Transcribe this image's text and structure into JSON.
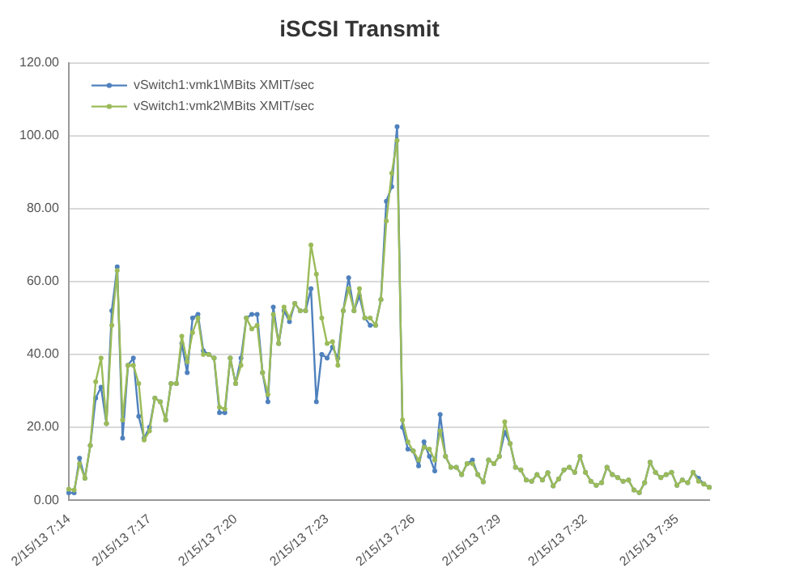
{
  "chart_data": {
    "type": "line",
    "title": "iSCSI Transmit",
    "categories": [
      "2/15/13 7:14",
      null,
      null,
      null,
      null,
      null,
      null,
      null,
      null,
      null,
      null,
      null,
      null,
      null,
      null,
      "2/15/13 7:17",
      null,
      null,
      null,
      null,
      null,
      null,
      null,
      null,
      null,
      null,
      null,
      null,
      null,
      null,
      null,
      "2/15/13 7:20",
      null,
      null,
      null,
      null,
      null,
      null,
      null,
      null,
      null,
      null,
      null,
      null,
      null,
      null,
      null,
      null,
      "2/15/13 7:23",
      null,
      null,
      null,
      null,
      null,
      null,
      null,
      null,
      null,
      null,
      null,
      null,
      null,
      null,
      null,
      "2/15/13 7:26",
      null,
      null,
      null,
      null,
      null,
      null,
      null,
      null,
      null,
      null,
      null,
      null,
      null,
      null,
      null,
      "2/15/13 7:29",
      null,
      null,
      null,
      null,
      null,
      null,
      null,
      null,
      null,
      null,
      null,
      null,
      null,
      null,
      null,
      "2/15/13 7:32",
      null,
      null,
      null,
      null,
      null,
      null,
      null,
      null,
      null,
      null,
      null,
      null,
      null,
      null,
      null,
      null,
      "2/15/13 7:35",
      null,
      null,
      null,
      null,
      null,
      null
    ],
    "series": [
      {
        "name": "vSwitch1:vmk1\\MBits XMIT/sec",
        "color": "#4f81bd",
        "values": [
          2,
          2,
          11.5,
          6,
          15,
          28,
          31,
          21,
          52,
          64,
          17,
          37,
          39,
          23,
          17,
          20,
          28,
          27,
          22,
          32,
          32,
          43,
          35,
          50,
          51,
          41,
          40,
          39,
          24,
          24,
          39,
          32,
          39,
          50,
          51,
          51,
          35,
          27,
          53,
          43,
          52,
          49,
          54,
          52,
          52,
          58,
          27,
          40,
          39,
          42,
          39,
          52,
          61,
          52,
          56,
          50,
          48,
          48,
          55,
          82,
          86,
          102.5,
          20,
          14,
          13.5,
          9.4,
          16,
          12,
          8,
          23.5,
          12,
          9,
          9,
          7,
          10,
          11,
          7,
          5,
          11,
          10,
          12,
          18.6,
          15.5,
          9,
          8.3,
          5.5,
          5.2,
          7,
          5.5,
          7.5,
          3.9,
          5.8,
          8.3,
          9,
          7.6,
          12,
          7.6,
          5.2,
          4.1,
          4.8,
          9,
          7,
          6.2,
          5.2,
          5.5,
          2.8,
          2.1,
          4.8,
          10.4,
          7.6,
          6.2,
          7,
          7.6,
          4.1,
          5.5,
          4.8,
          7.6,
          6,
          4.4,
          3.5
        ]
      },
      {
        "name": "vSwitch1:vmk2\\MBits XMIT/sec",
        "color": "#9bbb59",
        "values": [
          3,
          2.8,
          10,
          6,
          15,
          32.5,
          39,
          21,
          48,
          63,
          22,
          37,
          37,
          32,
          16.5,
          19,
          28,
          27,
          22,
          32,
          32,
          45,
          38,
          46,
          50,
          40,
          40,
          39,
          25.5,
          25,
          39,
          32,
          37,
          50,
          47,
          48,
          35,
          29,
          51,
          43,
          53,
          50,
          54,
          52,
          52,
          70,
          62,
          50,
          43,
          43.5,
          37,
          52,
          58,
          52,
          58,
          50,
          50,
          48,
          55,
          76.6,
          89.7,
          98.7,
          22,
          16,
          13.5,
          11,
          14.5,
          14,
          11,
          19,
          12,
          9,
          9,
          7,
          10,
          10,
          7,
          5,
          11,
          10,
          12,
          21.5,
          15.5,
          9,
          8.3,
          5.5,
          5.2,
          7,
          5.5,
          7.5,
          3.9,
          5.8,
          8.3,
          9,
          7.6,
          12,
          7.6,
          5.2,
          4.1,
          4.8,
          9,
          7,
          6.2,
          5.2,
          5.5,
          2.8,
          2.1,
          4.8,
          10.4,
          7.6,
          6.2,
          7,
          7.6,
          4.1,
          5.5,
          4.8,
          7.6,
          5.2,
          4.4,
          3.5
        ]
      }
    ],
    "ylim": [
      0,
      120
    ],
    "yticks": [
      {
        "value": 0,
        "label": "0.00"
      },
      {
        "value": 20,
        "label": "20.00"
      },
      {
        "value": 40,
        "label": "40.00"
      },
      {
        "value": 60,
        "label": "60.00"
      },
      {
        "value": 80,
        "label": "80.00"
      },
      {
        "value": 100,
        "label": "100.00"
      },
      {
        "value": 120,
        "label": "120.00"
      }
    ],
    "grid": "y",
    "legend": "top left",
    "marker": "circle",
    "line_style": "solid"
  }
}
